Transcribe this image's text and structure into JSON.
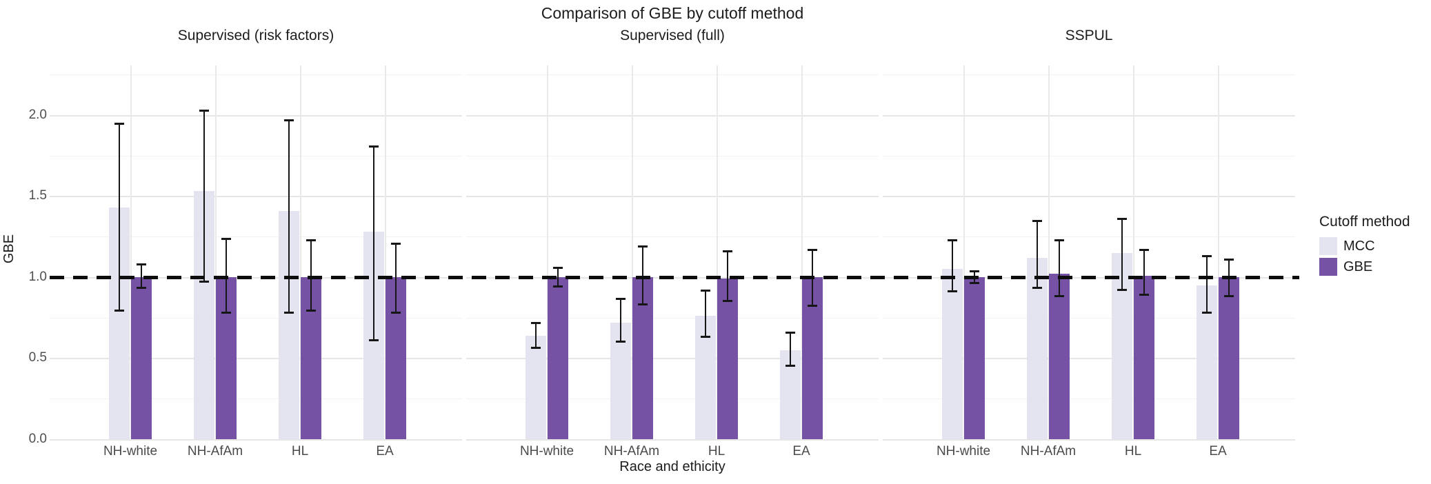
{
  "figure": {
    "title": "Comparison of GBE by cutoff method",
    "x_axis_title": "Race and ethicity",
    "y_axis_title": "GBE"
  },
  "legend": {
    "title": "Cutoff method",
    "items": [
      {
        "label": "MCC",
        "color": "#e4e4f1"
      },
      {
        "label": "GBE",
        "color": "#7552a3"
      }
    ]
  },
  "colors": {
    "mcc_bar": "#e4e4f1",
    "gbe_bar": "#7552a3",
    "grid_major": "#e6e6e6",
    "grid_minor": "#f2f2f2",
    "reference_line": "#0d0d0d",
    "error_bar": "#161616",
    "tick_text": "#4f4f4f",
    "title_text": "#1c1c1c"
  },
  "chart_data": {
    "type": "bar",
    "title": "Comparison of GBE by cutoff method",
    "xlabel": "Race and ethicity",
    "ylabel": "GBE",
    "legend_position": "right",
    "grid": true,
    "reference_line_y": 1.0,
    "categories": [
      "NH-white",
      "NH-AfAm",
      "HL",
      "EA"
    ],
    "y_axis": {
      "ticks": [
        0.0,
        0.5,
        1.0,
        1.5,
        2.0
      ],
      "tick_labels": [
        "0.0",
        "0.5",
        "1.0",
        "1.5",
        "2.0"
      ],
      "minor_ticks": [
        0.25,
        0.75,
        1.25,
        1.75,
        2.25
      ],
      "ylim": [
        0,
        2.306
      ]
    },
    "facets": [
      {
        "title": "Supervised (risk factors)",
        "series": [
          {
            "name": "MCC",
            "values": [
              1.43,
              1.53,
              1.41,
              1.28
            ],
            "ci_low": [
              0.79,
              0.97,
              0.78,
              0.61
            ],
            "ci_high": [
              1.95,
              2.03,
              1.97,
              1.81
            ]
          },
          {
            "name": "GBE",
            "values": [
              1.0,
              1.0,
              1.0,
              1.0
            ],
            "ci_low": [
              0.93,
              0.78,
              0.79,
              0.78
            ],
            "ci_high": [
              1.08,
              1.24,
              1.23,
              1.21
            ]
          }
        ]
      },
      {
        "title": "Supervised (full)",
        "series": [
          {
            "name": "MCC",
            "values": [
              0.64,
              0.72,
              0.76,
              0.55
            ],
            "ci_low": [
              0.56,
              0.6,
              0.63,
              0.45
            ],
            "ci_high": [
              0.72,
              0.87,
              0.92,
              0.66
            ]
          },
          {
            "name": "GBE",
            "values": [
              1.0,
              1.0,
              0.99,
              1.0
            ],
            "ci_low": [
              0.94,
              0.83,
              0.85,
              0.82
            ],
            "ci_high": [
              1.06,
              1.19,
              1.16,
              1.17
            ]
          }
        ]
      },
      {
        "title": "SSPUL",
        "series": [
          {
            "name": "MCC",
            "values": [
              1.05,
              1.12,
              1.15,
              0.95
            ],
            "ci_low": [
              0.91,
              0.93,
              0.92,
              0.78
            ],
            "ci_high": [
              1.23,
              1.35,
              1.36,
              1.13
            ]
          },
          {
            "name": "GBE",
            "values": [
              1.0,
              1.02,
              1.01,
              1.0
            ],
            "ci_low": [
              0.96,
              0.88,
              0.89,
              0.88
            ],
            "ci_high": [
              1.04,
              1.23,
              1.17,
              1.11
            ]
          }
        ]
      }
    ]
  }
}
